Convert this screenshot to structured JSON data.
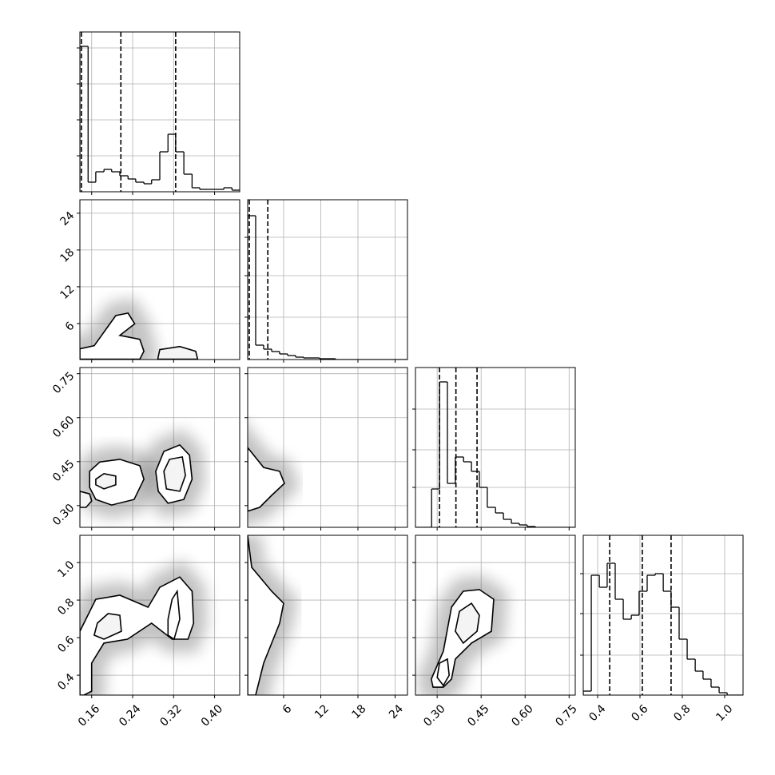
{
  "chart_data": {
    "type": "corner",
    "params": [
      {
        "xlim": [
          0.137,
          0.449
        ],
        "xticks": [
          0.16,
          0.24,
          0.32,
          {
            "value": 0.4,
            "label": "0.40"
          }
        ]
      },
      {
        "xlim": [
          0.2,
          26
        ],
        "ylim": [
          0.13,
          26.2
        ],
        "xticks": [
          6,
          12,
          18,
          24
        ],
        "yticks": [
          6,
          12,
          18,
          24
        ]
      },
      {
        "xlim": [
          0.226,
          0.771
        ],
        "ylim": [
          0.226,
          0.771
        ],
        "xticks": [
          {
            "value": 0.3,
            "label": "0.30"
          },
          0.45,
          {
            "value": 0.6,
            "label": "0.60"
          },
          0.75
        ],
        "yticks": [
          {
            "value": 0.3,
            "label": "0.30"
          },
          0.45,
          {
            "value": 0.6,
            "label": "0.60"
          },
          0.75
        ]
      },
      {
        "xlim": [
          0.332,
          1.087
        ],
        "ylim": [
          0.294,
          1.145
        ],
        "xticks": [
          0.4,
          0.6,
          0.8,
          {
            "value": 1,
            "label": "1.0"
          }
        ],
        "yticks": [
          0.4,
          0.6,
          0.8,
          {
            "value": 1,
            "label": "1.0"
          }
        ]
      }
    ],
    "histograms": [
      {
        "bins": [
          0.137,
          0.153,
          0.168,
          0.184,
          0.199,
          0.215,
          0.231,
          0.246,
          0.262,
          0.277,
          0.293,
          0.309,
          0.324,
          0.34,
          0.356,
          0.371,
          0.387,
          0.402,
          0.418,
          0.434,
          0.449
        ],
        "counts": [
          182,
          12,
          25,
          28,
          25,
          20,
          16,
          12,
          10,
          15,
          50,
          72,
          50,
          22,
          5,
          3,
          3,
          3,
          5,
          2
        ],
        "quantiles": [
          0.14,
          0.217,
          0.324
        ],
        "ylim": [
          0,
          200
        ],
        "yticks": [
          45,
          90,
          135,
          180
        ]
      },
      {
        "bins": [
          0.2,
          1.49,
          2.78,
          4.07,
          5.36,
          6.65,
          7.94,
          9.23,
          10.52,
          11.81,
          13.1,
          14.39,
          15.68,
          16.97,
          18.26,
          19.55,
          20.84,
          22.13,
          23.42,
          24.71,
          26.0
        ],
        "counts": [
          180,
          18,
          13,
          10,
          7,
          5,
          3,
          2,
          2,
          1,
          1,
          0,
          0,
          0,
          0,
          0,
          0,
          0,
          0,
          0
        ],
        "quantiles": [
          0.46,
          3.45
        ],
        "ylim": [
          0,
          200
        ],
        "yticks": [
          53,
          105,
          153
        ]
      },
      {
        "bins": [
          0.226,
          0.253,
          0.281,
          0.308,
          0.335,
          0.362,
          0.39,
          0.417,
          0.444,
          0.471,
          0.499,
          0.526,
          0.553,
          0.58,
          0.607,
          0.635,
          0.662,
          0.689,
          0.716,
          0.744,
          0.771
        ],
        "counts": [
          0,
          0,
          48,
          182,
          55,
          88,
          82,
          70,
          50,
          25,
          18,
          10,
          5,
          3,
          1,
          0,
          0,
          0,
          0,
          0
        ],
        "quantiles": [
          0.308,
          0.364,
          0.436
        ],
        "ylim": [
          0,
          200
        ],
        "yticks": [
          50,
          97,
          148
        ]
      },
      {
        "bins": [
          0.332,
          0.37,
          0.408,
          0.445,
          0.483,
          0.521,
          0.559,
          0.596,
          0.634,
          0.672,
          0.71,
          0.747,
          0.785,
          0.823,
          0.861,
          0.898,
          0.936,
          0.974,
          1.012,
          1.049,
          1.087
        ],
        "counts": [
          5,
          150,
          135,
          165,
          120,
          95,
          100,
          130,
          150,
          152,
          130,
          110,
          70,
          45,
          30,
          20,
          10,
          3,
          0,
          0
        ],
        "quantiles": [
          0.457,
          0.611,
          0.747
        ],
        "ylim": [
          0,
          200
        ],
        "yticks": [
          50,
          102,
          152
        ]
      }
    ],
    "panels": [
      {
        "x_param": 0,
        "y_param": 1,
        "contours": [
          {
            "x": [
              0.137,
              0.165,
              0.207,
              0.231,
              0.244,
              0.215,
              0.254,
              0.262,
              0.254,
              0.137
            ],
            "y": [
              1.88,
              2.39,
              7.3,
              7.7,
              5.96,
              4.07,
              3.43,
              1.49,
              0.2,
              0.2
            ]
          },
          {
            "x": [
              0.289,
              0.293,
              0.332,
              0.363,
              0.367
            ],
            "y": [
              0.2,
              1.75,
              2.26,
              1.49,
              0.2
            ]
          }
        ]
      },
      {
        "x_param": 0,
        "y_param": 2,
        "contours": [
          {
            "x": [
              0.156,
              0.176,
              0.215,
              0.254,
              0.262,
              0.243,
              0.199,
              0.168,
              0.156
            ],
            "y": [
              0.417,
              0.449,
              0.458,
              0.436,
              0.39,
              0.321,
              0.302,
              0.321,
              0.362
            ]
          },
          {
            "x": [
              0.168,
              0.184,
              0.207,
              0.207,
              0.184,
              0.168
            ],
            "y": [
              0.39,
              0.409,
              0.401,
              0.371,
              0.357,
              0.371
            ]
          },
          {
            "x": [
              0.285,
              0.301,
              0.332,
              0.351,
              0.356,
              0.34,
              0.309,
              0.29
            ],
            "y": [
              0.417,
              0.485,
              0.507,
              0.472,
              0.39,
              0.321,
              0.308,
              0.349
            ]
          },
          {
            "x": [
              0.301,
              0.312,
              0.337,
              0.343,
              0.332,
              0.306
            ],
            "y": [
              0.417,
              0.458,
              0.466,
              0.403,
              0.349,
              0.357
            ]
          },
          {
            "x": [
              0.137,
              0.156,
              0.16,
              0.149,
              0.137
            ],
            "y": [
              0.349,
              0.34,
              0.316,
              0.294,
              0.294
            ]
          }
        ]
      },
      {
        "x_param": 0,
        "y_param": 3,
        "contours": [
          {
            "x": [
              0.137,
              0.168,
              0.215,
              0.27,
              0.293,
              0.332,
              0.356,
              0.359,
              0.348,
              0.317,
              0.277,
              0.23,
              0.184,
              0.16,
              0.16,
              0.145,
              0.137
            ],
            "y": [
              0.634,
              0.804,
              0.826,
              0.762,
              0.868,
              0.923,
              0.847,
              0.677,
              0.592,
              0.592,
              0.677,
              0.592,
              0.571,
              0.464,
              0.315,
              0.294,
              0.294
            ]
          },
          {
            "x": [
              0.171,
              0.192,
              0.215,
              0.218,
              0.184,
              0.165
            ],
            "y": [
              0.677,
              0.728,
              0.719,
              0.634,
              0.592,
              0.613
            ]
          },
          {
            "x": [
              0.309,
              0.317,
              0.327,
              0.332,
              0.321,
              0.309
            ],
            "y": [
              0.698,
              0.804,
              0.847,
              0.698,
              0.592,
              0.613
            ]
          }
        ]
      },
      {
        "x_param": 1,
        "y_param": 2,
        "contours": [
          {
            "x": [
              0.2,
              2.78,
              5.36,
              6.14,
              4.07,
              2.14,
              0.2
            ],
            "y": [
              0.498,
              0.43,
              0.417,
              0.376,
              0.335,
              0.294,
              0.281
            ]
          }
        ]
      },
      {
        "x_param": 1,
        "y_param": 3,
        "contours": [
          {
            "x": [
              0.2,
              0.85,
              4.07,
              6.0,
              5.36,
              2.78,
              1.49,
              0.2
            ],
            "y": [
              1.145,
              0.975,
              0.847,
              0.783,
              0.677,
              0.464,
              0.294,
              0.294
            ]
          }
        ]
      },
      {
        "x_param": 2,
        "y_param": 3,
        "contours": [
          {
            "x": [
              0.28,
              0.321,
              0.349,
              0.389,
              0.444,
              0.493,
              0.485,
              0.417,
              0.362,
              0.349,
              0.321,
              0.286
            ],
            "y": [
              0.379,
              0.528,
              0.762,
              0.847,
              0.856,
              0.804,
              0.634,
              0.571,
              0.486,
              0.379,
              0.336,
              0.336
            ]
          },
          {
            "x": [
              0.362,
              0.376,
              0.417,
              0.444,
              0.436,
              0.389
            ],
            "y": [
              0.634,
              0.74,
              0.783,
              0.719,
              0.634,
              0.571
            ]
          },
          {
            "x": [
              0.3,
              0.308,
              0.335,
              0.341,
              0.321
            ],
            "y": [
              0.388,
              0.464,
              0.486,
              0.4,
              0.345
            ]
          }
        ]
      }
    ]
  }
}
